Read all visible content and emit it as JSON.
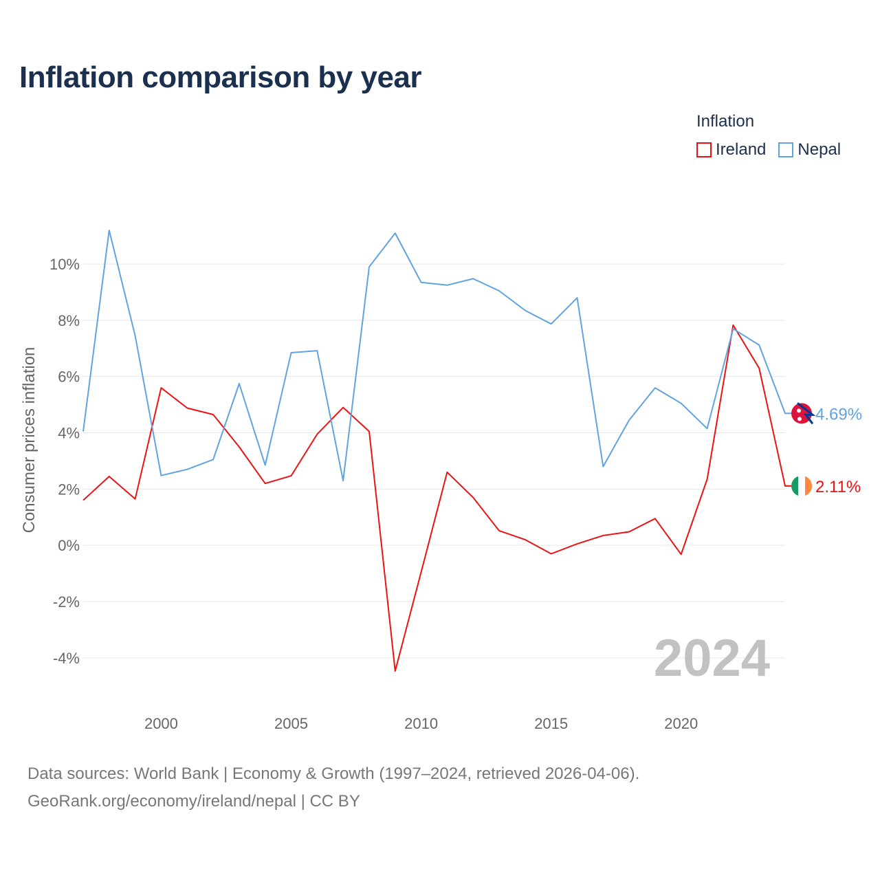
{
  "title": "Inflation comparison by year",
  "legend": {
    "title": "Inflation",
    "items": [
      {
        "name": "Ireland",
        "color": "#ee1111"
      },
      {
        "name": "Nepal",
        "color": "#5fa3e0"
      }
    ]
  },
  "year_label": "2024",
  "source": {
    "line1": "Data sources: World Bank | Economy & Growth (1997–2024, retrieved 2026-04-06).",
    "line2": "GeoRank.org/economy/ireland/nepal | CC BY"
  },
  "chart_data": {
    "type": "line",
    "title": "Inflation comparison by year",
    "xlabel": "",
    "ylabel": "Consumer prices inflation",
    "xlim": [
      1997,
      2024
    ],
    "ylim": [
      -5.3,
      12.3
    ],
    "xticks": [
      2000,
      2005,
      2010,
      2015,
      2020
    ],
    "yticks": [
      -4,
      -2,
      0,
      2,
      4,
      6,
      8,
      10
    ],
    "x": [
      1997,
      1998,
      1999,
      2000,
      2001,
      2002,
      2003,
      2004,
      2005,
      2006,
      2007,
      2008,
      2009,
      2010,
      2011,
      2012,
      2013,
      2014,
      2015,
      2016,
      2017,
      2018,
      2019,
      2020,
      2021,
      2022,
      2023,
      2024
    ],
    "series": [
      {
        "name": "Ireland",
        "color": "#ee1111",
        "values": [
          1.6,
          2.45,
          1.65,
          5.6,
          4.88,
          4.65,
          3.5,
          2.2,
          2.47,
          3.95,
          4.9,
          4.05,
          -4.47,
          -0.95,
          2.6,
          1.7,
          0.52,
          0.2,
          -0.3,
          0.05,
          0.35,
          0.48,
          0.95,
          -0.32,
          2.35,
          7.83,
          6.3,
          2.11
        ],
        "end_label": "2.11%"
      },
      {
        "name": "Nepal",
        "color": "#5fa3e0",
        "values": [
          4.05,
          11.2,
          7.45,
          2.48,
          2.7,
          3.05,
          5.75,
          2.85,
          6.85,
          6.92,
          2.3,
          9.9,
          11.1,
          9.35,
          9.25,
          9.48,
          9.05,
          8.35,
          7.87,
          8.8,
          2.8,
          4.45,
          5.6,
          5.05,
          4.15,
          7.7,
          7.12,
          4.69
        ],
        "end_label": "4.69%"
      }
    ]
  }
}
